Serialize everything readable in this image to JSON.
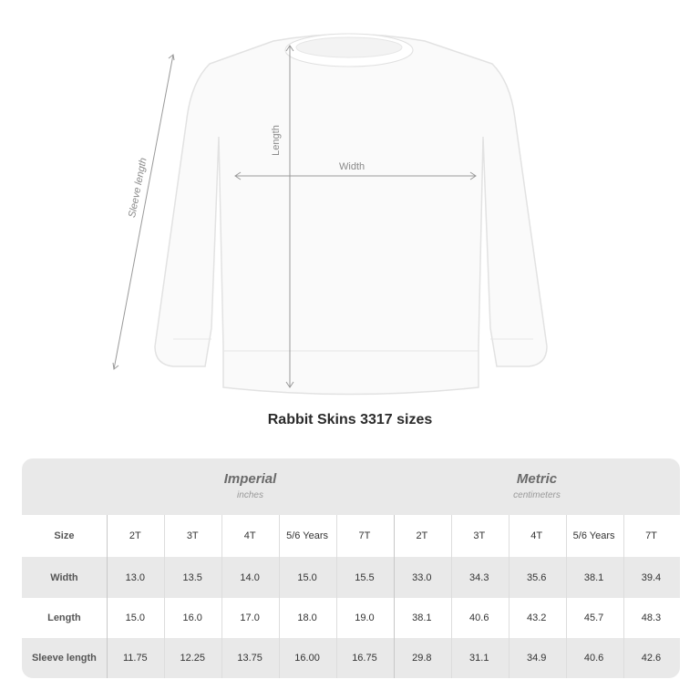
{
  "diagram": {
    "length_label": "Length",
    "width_label": "Width",
    "sleeve_label": "Sleeve length"
  },
  "title": "Rabbit Skins 3317 sizes",
  "table": {
    "imperial": {
      "title": "Imperial",
      "unit": "inches"
    },
    "metric": {
      "title": "Metric",
      "unit": "centimeters"
    },
    "size_row": {
      "label": "Size",
      "values": [
        "2T",
        "3T",
        "4T",
        "5/6 Years",
        "7T",
        "2T",
        "3T",
        "4T",
        "5/6 Years",
        "7T"
      ]
    },
    "rows": [
      {
        "label": "Width",
        "values": [
          "13.0",
          "13.5",
          "14.0",
          "15.0",
          "15.5",
          "33.0",
          "34.3",
          "35.6",
          "38.1",
          "39.4"
        ]
      },
      {
        "label": "Length",
        "values": [
          "15.0",
          "16.0",
          "17.0",
          "18.0",
          "19.0",
          "38.1",
          "40.6",
          "43.2",
          "45.7",
          "48.3"
        ]
      },
      {
        "label": "Sleeve length",
        "values": [
          "11.75",
          "12.25",
          "13.75",
          "16.00",
          "16.75",
          "29.8",
          "31.1",
          "34.9",
          "40.6",
          "42.6"
        ]
      }
    ]
  }
}
